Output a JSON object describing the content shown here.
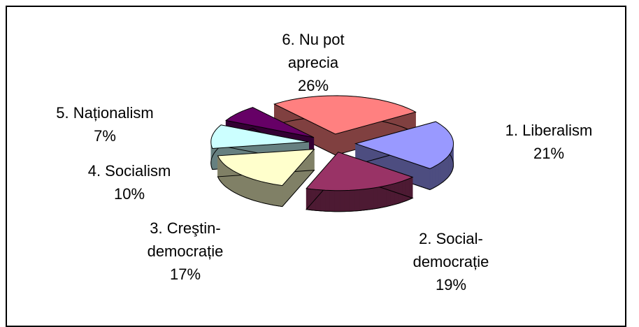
{
  "chart_data": {
    "type": "pie3d",
    "categories": [
      "1. Liberalism",
      "2. Social-democrație",
      "3. Creştin-democrație",
      "4. Socialism",
      "5. Naționalism",
      "6. Nu pot aprecia"
    ],
    "values": [
      21,
      19,
      17,
      10,
      7,
      26
    ],
    "value_labels": [
      "21%",
      "19%",
      "17%",
      "10%",
      "7%",
      "26%"
    ],
    "colors": [
      "#9999ff",
      "#993366",
      "#ffffcc",
      "#ccffff",
      "#660066",
      "#ff8080"
    ]
  }
}
